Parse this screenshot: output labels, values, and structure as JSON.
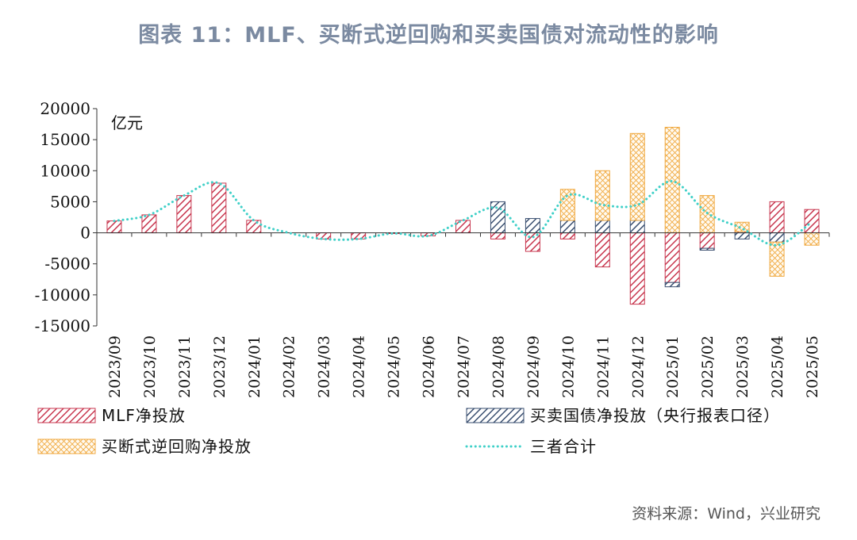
{
  "title": "图表 11：MLF、买断式逆回购和买卖国债对流动性的影响",
  "source": "资料来源：Wind，兴业研究",
  "chart_data": {
    "type": "bar",
    "stacked": true,
    "unit_label": "亿元",
    "ylim": [
      -15000,
      20000
    ],
    "yticks": [
      20000,
      15000,
      10000,
      5000,
      0,
      -5000,
      -10000,
      -15000
    ],
    "categories": [
      "2023/09",
      "2023/10",
      "2023/11",
      "2023/12",
      "2024/01",
      "2024/02",
      "2024/03",
      "2024/04",
      "2024/05",
      "2024/06",
      "2024/07",
      "2024/08",
      "2024/09",
      "2024/10",
      "2024/11",
      "2024/12",
      "2025/01",
      "2025/02",
      "2025/03",
      "2025/04",
      "2025/05"
    ],
    "series": [
      {
        "name": "MLF净投放",
        "key": "mlf",
        "color": "#c8374f",
        "values": [
          1910,
          2890,
          6000,
          8000,
          2000,
          0,
          -1000,
          -1000,
          -100,
          -500,
          2000,
          -1000,
          -3000,
          -1000,
          -5500,
          -11500,
          -8000,
          -2500,
          200,
          5000,
          3750
        ]
      },
      {
        "name": "买卖国债净投放（央行报表口径）",
        "key": "bond",
        "color": "#3a4f70",
        "values": [
          0,
          0,
          0,
          0,
          0,
          0,
          0,
          0,
          0,
          0,
          0,
          5000,
          2300,
          2000,
          2000,
          2000,
          -700,
          -300,
          -1000,
          -1500,
          0
        ]
      },
      {
        "name": "买断式逆回购净投放",
        "key": "repo",
        "color": "#f0a940",
        "values": [
          0,
          0,
          0,
          0,
          0,
          0,
          0,
          0,
          0,
          0,
          0,
          0,
          0,
          5000,
          8000,
          14000,
          17000,
          6000,
          1500,
          -5500,
          -2000
        ]
      },
      {
        "name": "三者合计",
        "key": "total",
        "type": "line",
        "style": "dotted",
        "color": "#3fd0c8",
        "values": [
          1910,
          2890,
          6000,
          8000,
          2000,
          0,
          -1000,
          -1000,
          -100,
          -500,
          2000,
          4000,
          -700,
          6000,
          4500,
          4500,
          8300,
          3200,
          700,
          -2000,
          1750
        ]
      }
    ]
  }
}
